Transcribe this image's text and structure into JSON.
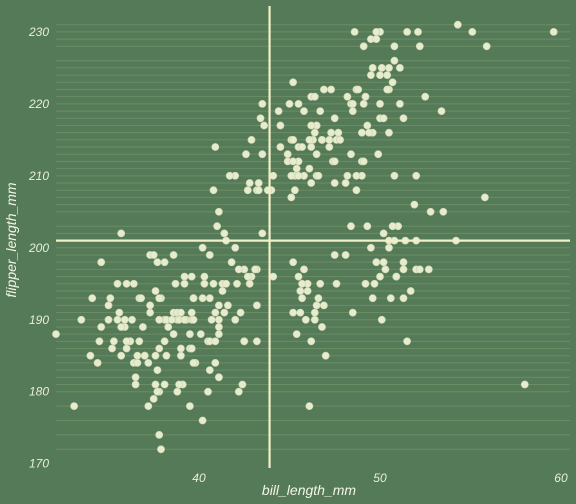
{
  "chart_data": {
    "type": "scatter",
    "title": "",
    "xlabel": "bill_length_mm",
    "ylabel": "flipper_length_mm",
    "xlim": [
      32.1,
      60.5
    ],
    "ylim": [
      169.4,
      233.6
    ],
    "x_ticks": [
      40,
      50,
      60
    ],
    "y_ticks": [
      170,
      180,
      190,
      200,
      210,
      220,
      230
    ],
    "reference_lines": {
      "vertical_x": 43.9,
      "horizontal_y": 201
    },
    "horizontal_grid_y": [
      172,
      174,
      176,
      178,
      180,
      181,
      182,
      183,
      184,
      185,
      186,
      187,
      188,
      189,
      190,
      191,
      192,
      193,
      194,
      195,
      196,
      197,
      198,
      199,
      200,
      201,
      202,
      203,
      205,
      206,
      207,
      208,
      209,
      210,
      211,
      212,
      213,
      214,
      215,
      216,
      217,
      218,
      219,
      220,
      221,
      222,
      223,
      224,
      225,
      226,
      228,
      229,
      230,
      231
    ],
    "grid": true,
    "colors": {
      "background": "#557a58",
      "points": "#e6eccd",
      "point_stroke": "#c9d3ad",
      "reference_line": "#f2f0c8",
      "grid_line": "#6f9167"
    },
    "points": [
      [
        39.1,
        181
      ],
      [
        39.5,
        186
      ],
      [
        40.3,
        195
      ],
      [
        36.7,
        193
      ],
      [
        39.3,
        190
      ],
      [
        38.9,
        181
      ],
      [
        39.2,
        195
      ],
      [
        34.1,
        193
      ],
      [
        42.0,
        190
      ],
      [
        37.8,
        186
      ],
      [
        37.8,
        180
      ],
      [
        41.1,
        182
      ],
      [
        38.6,
        191
      ],
      [
        34.6,
        198
      ],
      [
        36.6,
        185
      ],
      [
        38.7,
        195
      ],
      [
        42.5,
        197
      ],
      [
        34.4,
        184
      ],
      [
        46.0,
        194
      ],
      [
        37.8,
        174
      ],
      [
        37.7,
        180
      ],
      [
        35.9,
        189
      ],
      [
        38.2,
        185
      ],
      [
        38.8,
        180
      ],
      [
        35.3,
        187
      ],
      [
        40.6,
        183
      ],
      [
        40.5,
        187
      ],
      [
        37.9,
        172
      ],
      [
        40.5,
        180
      ],
      [
        39.5,
        178
      ],
      [
        37.2,
        178
      ],
      [
        39.5,
        188
      ],
      [
        40.9,
        184
      ],
      [
        36.4,
        195
      ],
      [
        39.2,
        196
      ],
      [
        38.8,
        190
      ],
      [
        42.2,
        180
      ],
      [
        37.6,
        181
      ],
      [
        39.8,
        184
      ],
      [
        36.5,
        182
      ],
      [
        40.8,
        195
      ],
      [
        36.0,
        186
      ],
      [
        44.1,
        196
      ],
      [
        37.0,
        185
      ],
      [
        39.6,
        190
      ],
      [
        41.1,
        182
      ],
      [
        37.5,
        179
      ],
      [
        42.3,
        191
      ],
      [
        39.6,
        186
      ],
      [
        40.1,
        188
      ],
      [
        35.0,
        190
      ],
      [
        42.0,
        200
      ],
      [
        34.5,
        187
      ],
      [
        41.4,
        191
      ],
      [
        39.0,
        186
      ],
      [
        40.6,
        193
      ],
      [
        36.5,
        181
      ],
      [
        37.6,
        194
      ],
      [
        35.7,
        185
      ],
      [
        41.3,
        195
      ],
      [
        37.6,
        185
      ],
      [
        41.1,
        192
      ],
      [
        36.4,
        184
      ],
      [
        41.6,
        192
      ],
      [
        35.5,
        195
      ],
      [
        41.1,
        188
      ],
      [
        35.9,
        190
      ],
      [
        41.8,
        198
      ],
      [
        33.5,
        190
      ],
      [
        39.7,
        190
      ],
      [
        39.6,
        196
      ],
      [
        45.8,
        197
      ],
      [
        35.5,
        190
      ],
      [
        42.8,
        195
      ],
      [
        40.9,
        191
      ],
      [
        37.2,
        184
      ],
      [
        36.2,
        187
      ],
      [
        42.1,
        195
      ],
      [
        34.6,
        189
      ],
      [
        42.9,
        196
      ],
      [
        36.7,
        187
      ],
      [
        35.1,
        193
      ],
      [
        37.3,
        191
      ],
      [
        41.3,
        194
      ],
      [
        36.3,
        190
      ],
      [
        36.9,
        189
      ],
      [
        38.3,
        189
      ],
      [
        38.9,
        190
      ],
      [
        35.7,
        202
      ],
      [
        41.1,
        205
      ],
      [
        34.0,
        185
      ],
      [
        39.6,
        186
      ],
      [
        36.2,
        187
      ],
      [
        40.8,
        208
      ],
      [
        38.1,
        190
      ],
      [
        40.3,
        196
      ],
      [
        33.1,
        178
      ],
      [
        43.2,
        192
      ],
      [
        35.0,
        192
      ],
      [
        41.0,
        203
      ],
      [
        37.7,
        183
      ],
      [
        37.8,
        190
      ],
      [
        37.9,
        193
      ],
      [
        39.7,
        184
      ],
      [
        38.6,
        199
      ],
      [
        38.2,
        190
      ],
      [
        38.1,
        181
      ],
      [
        43.2,
        197
      ],
      [
        38.1,
        198
      ],
      [
        45.6,
        191
      ],
      [
        39.7,
        193
      ],
      [
        42.2,
        197
      ],
      [
        39.6,
        191
      ],
      [
        42.7,
        196
      ],
      [
        38.6,
        188
      ],
      [
        37.3,
        199
      ],
      [
        35.7,
        189
      ],
      [
        41.1,
        189
      ],
      [
        36.2,
        187
      ],
      [
        37.7,
        198
      ],
      [
        40.2,
        176
      ],
      [
        41.4,
        202
      ],
      [
        35.2,
        186
      ],
      [
        40.6,
        199
      ],
      [
        38.8,
        191
      ],
      [
        41.5,
        195
      ],
      [
        39.0,
        191
      ],
      [
        44.1,
        210
      ],
      [
        38.5,
        190
      ],
      [
        43.1,
        197
      ],
      [
        36.8,
        193
      ],
      [
        37.5,
        199
      ],
      [
        38.1,
        187
      ],
      [
        41.1,
        190
      ],
      [
        35.6,
        191
      ],
      [
        40.2,
        200
      ],
      [
        37.0,
        185
      ],
      [
        39.7,
        193
      ],
      [
        40.2,
        193
      ],
      [
        40.6,
        187
      ],
      [
        32.1,
        188
      ],
      [
        40.7,
        190
      ],
      [
        37.3,
        192
      ],
      [
        39.0,
        185
      ],
      [
        39.2,
        190
      ],
      [
        36.6,
        184
      ],
      [
        36.0,
        195
      ],
      [
        37.8,
        193
      ],
      [
        36.0,
        187
      ],
      [
        41.5,
        201
      ],
      [
        46.5,
        192
      ],
      [
        50.0,
        196
      ],
      [
        51.3,
        193
      ],
      [
        45.4,
        188
      ],
      [
        52.7,
        197
      ],
      [
        45.2,
        198
      ],
      [
        46.1,
        178
      ],
      [
        51.3,
        197
      ],
      [
        46.0,
        195
      ],
      [
        51.3,
        198
      ],
      [
        46.6,
        193
      ],
      [
        51.7,
        194
      ],
      [
        47.0,
        185
      ],
      [
        52.0,
        201
      ],
      [
        45.9,
        190
      ],
      [
        50.5,
        201
      ],
      [
        50.3,
        197
      ],
      [
        58.0,
        181
      ],
      [
        46.4,
        190
      ],
      [
        49.2,
        195
      ],
      [
        42.4,
        181
      ],
      [
        48.5,
        191
      ],
      [
        43.2,
        187
      ],
      [
        50.6,
        193
      ],
      [
        46.7,
        195
      ],
      [
        52.0,
        197
      ],
      [
        50.5,
        200
      ],
      [
        49.5,
        200
      ],
      [
        46.4,
        191
      ],
      [
        52.8,
        205
      ],
      [
        40.9,
        187
      ],
      [
        54.2,
        201
      ],
      [
        42.5,
        187
      ],
      [
        51.0,
        203
      ],
      [
        49.7,
        195
      ],
      [
        47.5,
        199
      ],
      [
        47.6,
        195
      ],
      [
        52.0,
        210
      ],
      [
        46.9,
        192
      ],
      [
        53.5,
        205
      ],
      [
        49.0,
        210
      ],
      [
        46.2,
        187
      ],
      [
        50.9,
        196
      ],
      [
        45.5,
        196
      ],
      [
        50.9,
        196
      ],
      [
        50.8,
        201
      ],
      [
        50.1,
        190
      ],
      [
        49.0,
        212
      ],
      [
        51.5,
        187
      ],
      [
        49.8,
        198
      ],
      [
        48.1,
        199
      ],
      [
        51.4,
        201
      ],
      [
        45.7,
        193
      ],
      [
        50.7,
        203
      ],
      [
        42.5,
        187
      ],
      [
        52.2,
        197
      ],
      [
        45.2,
        191
      ],
      [
        49.3,
        203
      ],
      [
        50.2,
        202
      ],
      [
        45.6,
        194
      ],
      [
        51.9,
        206
      ],
      [
        46.8,
        189
      ],
      [
        45.7,
        195
      ],
      [
        55.8,
        207
      ],
      [
        43.5,
        202
      ],
      [
        49.6,
        193
      ],
      [
        50.8,
        210
      ],
      [
        50.2,
        198
      ],
      [
        46.1,
        211
      ],
      [
        50.0,
        230
      ],
      [
        48.7,
        210
      ],
      [
        50.0,
        218
      ],
      [
        47.6,
        215
      ],
      [
        46.5,
        210
      ],
      [
        45.4,
        211
      ],
      [
        46.7,
        219
      ],
      [
        43.3,
        209
      ],
      [
        46.8,
        215
      ],
      [
        40.9,
        214
      ],
      [
        49.0,
        216
      ],
      [
        45.5,
        214
      ],
      [
        48.4,
        213
      ],
      [
        45.8,
        210
      ],
      [
        49.3,
        217
      ],
      [
        42.0,
        210
      ],
      [
        49.2,
        221
      ],
      [
        46.2,
        209
      ],
      [
        48.7,
        222
      ],
      [
        50.2,
        218
      ],
      [
        45.1,
        215
      ],
      [
        46.5,
        213
      ],
      [
        46.3,
        215
      ],
      [
        42.9,
        215
      ],
      [
        46.1,
        215
      ],
      [
        47.8,
        215
      ],
      [
        48.2,
        210
      ],
      [
        50.0,
        220
      ],
      [
        47.3,
        222
      ],
      [
        42.8,
        209
      ],
      [
        45.1,
        207
      ],
      [
        59.6,
        230
      ],
      [
        49.1,
        220
      ],
      [
        48.4,
        220
      ],
      [
        42.6,
        213
      ],
      [
        44.4,
        219
      ],
      [
        44.0,
        208
      ],
      [
        48.7,
        208
      ],
      [
        42.7,
        208
      ],
      [
        49.6,
        225
      ],
      [
        45.3,
        210
      ],
      [
        49.6,
        216
      ],
      [
        50.5,
        222
      ],
      [
        43.6,
        217
      ],
      [
        45.5,
        210
      ],
      [
        50.5,
        225
      ],
      [
        44.9,
        213
      ],
      [
        45.2,
        215
      ],
      [
        46.6,
        210
      ],
      [
        48.5,
        220
      ],
      [
        45.1,
        210
      ],
      [
        50.1,
        225
      ],
      [
        46.5,
        217
      ],
      [
        45.0,
        220
      ],
      [
        43.8,
        208
      ],
      [
        45.5,
        220
      ],
      [
        43.2,
        208
      ],
      [
        50.4,
        224
      ],
      [
        45.3,
        208
      ],
      [
        46.2,
        221
      ],
      [
        45.7,
        214
      ],
      [
        54.3,
        231
      ],
      [
        45.8,
        219
      ],
      [
        49.8,
        230
      ],
      [
        46.2,
        214
      ],
      [
        49.5,
        229
      ],
      [
        43.5,
        220
      ],
      [
        50.7,
        223
      ],
      [
        47.7,
        216
      ],
      [
        46.4,
        221
      ],
      [
        48.2,
        221
      ],
      [
        46.5,
        217
      ],
      [
        46.4,
        216
      ],
      [
        48.6,
        230
      ],
      [
        47.5,
        209
      ],
      [
        51.1,
        220
      ],
      [
        45.2,
        215
      ],
      [
        45.2,
        223
      ],
      [
        49.1,
        212
      ],
      [
        52.5,
        221
      ],
      [
        47.4,
        212
      ],
      [
        50.0,
        224
      ],
      [
        44.9,
        212
      ],
      [
        50.8,
        228
      ],
      [
        43.4,
        218
      ],
      [
        51.3,
        218
      ],
      [
        47.5,
        212
      ],
      [
        52.1,
        230
      ],
      [
        47.5,
        218
      ],
      [
        52.2,
        228
      ],
      [
        45.5,
        212
      ],
      [
        49.5,
        224
      ],
      [
        44.5,
        214
      ],
      [
        50.8,
        226
      ],
      [
        49.4,
        216
      ],
      [
        46.9,
        222
      ],
      [
        48.4,
        203
      ],
      [
        51.1,
        225
      ],
      [
        48.5,
        219
      ],
      [
        55.9,
        228
      ],
      [
        47.2,
        215
      ],
      [
        49.1,
        228
      ],
      [
        47.3,
        216
      ],
      [
        46.8,
        215
      ],
      [
        41.7,
        210
      ],
      [
        53.4,
        219
      ],
      [
        43.3,
        208
      ],
      [
        48.1,
        209
      ],
      [
        50.5,
        216
      ],
      [
        49.8,
        229
      ],
      [
        43.5,
        213
      ],
      [
        51.5,
        230
      ],
      [
        46.2,
        217
      ],
      [
        55.1,
        230
      ],
      [
        44.5,
        217
      ],
      [
        48.8,
        222
      ],
      [
        47.2,
        214
      ],
      [
        46.8,
        215
      ],
      [
        50.4,
        222
      ],
      [
        45.2,
        212
      ],
      [
        49.9,
        213
      ]
    ]
  }
}
